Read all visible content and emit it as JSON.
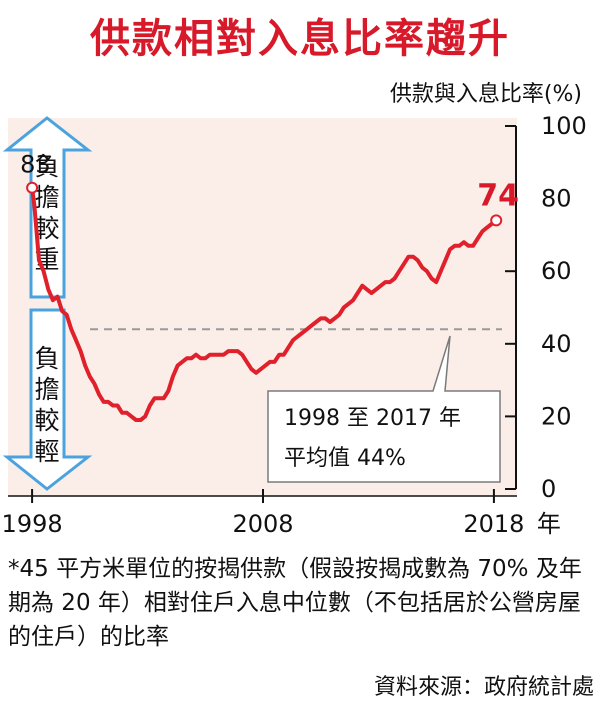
{
  "title": "供款相對入息比率趨升",
  "chart_data": {
    "type": "line",
    "ylabel": "供款與入息比率(%)",
    "ylim": [
      0,
      100
    ],
    "yticks": [
      0,
      20,
      40,
      60,
      80,
      100
    ],
    "xlim": [
      1997,
      2019
    ],
    "xticks": [
      "1998",
      "2008",
      "2018"
    ],
    "xunit": "年",
    "grid": false,
    "series": [
      {
        "x": [
          1998.0,
          1998.1,
          1998.3,
          1998.5,
          1998.7,
          1998.9,
          1999.1,
          1999.3,
          1999.5,
          1999.7,
          1999.9,
          2000.1,
          2000.3,
          2000.5,
          2000.7,
          2000.9,
          2001.1,
          2001.3,
          2001.5,
          2001.7,
          2001.9,
          2002.1,
          2002.3,
          2002.5,
          2002.7,
          2002.9,
          2003.1,
          2003.3,
          2003.5,
          2003.7,
          2003.9,
          2004.1,
          2004.3,
          2004.5,
          2004.7,
          2004.9,
          2005.1,
          2005.3,
          2005.5,
          2005.7,
          2005.9,
          2006.1,
          2006.3,
          2006.5,
          2006.7,
          2006.9,
          2007.1,
          2007.3,
          2007.5,
          2007.7,
          2007.9,
          2008.1,
          2008.3,
          2008.5,
          2008.7,
          2008.9,
          2009.1,
          2009.3,
          2009.5,
          2009.7,
          2009.9,
          2010.1,
          2010.3,
          2010.5,
          2010.7,
          2010.9,
          2011.1,
          2011.3,
          2011.5,
          2011.7,
          2011.9,
          2012.1,
          2012.3,
          2012.5,
          2012.7,
          2012.9,
          2013.1,
          2013.3,
          2013.5,
          2013.7,
          2013.9,
          2014.1,
          2014.3,
          2014.5,
          2014.7,
          2014.9,
          2015.1,
          2015.3,
          2015.5,
          2015.7,
          2015.9,
          2016.1,
          2016.3,
          2016.5,
          2016.7,
          2016.9,
          2017.1,
          2017.3,
          2017.5,
          2017.7,
          2017.9,
          2018.1
        ],
        "y": [
          83,
          78,
          63,
          60,
          55,
          52,
          53,
          49,
          48,
          44,
          41,
          38,
          34,
          31,
          29,
          26,
          24,
          24,
          23,
          23,
          21,
          21,
          20,
          19,
          19,
          20,
          23,
          25,
          25,
          25,
          27,
          31,
          34,
          35,
          36,
          36,
          37,
          36,
          36,
          37,
          37,
          37,
          37,
          38,
          38,
          38,
          37,
          35,
          33,
          32,
          33,
          34,
          35,
          35,
          37,
          37,
          39,
          41,
          42,
          43,
          44,
          45,
          46,
          47,
          47,
          46,
          47,
          48,
          50,
          51,
          52,
          54,
          56,
          55,
          54,
          55,
          56,
          57,
          57,
          58,
          60,
          62,
          64,
          64,
          63,
          61,
          60,
          58,
          57,
          60,
          63,
          66,
          67,
          67,
          68,
          67,
          67,
          69,
          71,
          72,
          73,
          74
        ]
      }
    ],
    "reference_line": {
      "value": 44,
      "style": "dashed"
    },
    "annotations": {
      "start_label": "83",
      "end_label": "74",
      "average_note_line1": "1998 至 2017 年",
      "average_note_line2": "平均值 44%"
    },
    "side_arrows": {
      "heavier": "負擔較重",
      "lighter": "負擔較輕"
    }
  },
  "footnote": "*45 平方米單位的按揭供款（假設按揭成數為 70% 及年期為 20 年）相對住戶入息中位數（不包括居於公營房屋的住戶）的比率",
  "source": "資料來源：政府統計處",
  "colors": {
    "title": "#d7192a",
    "line": "#e0202a",
    "arrow_stroke": "#4aa3df",
    "panel": "#fbeee9",
    "reference": "#9a9a9a"
  }
}
